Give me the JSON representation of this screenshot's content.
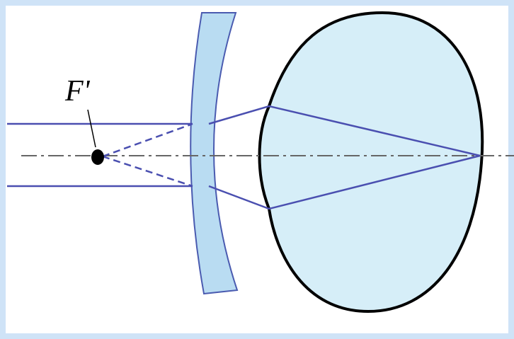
{
  "focus_label": "F'"
}
